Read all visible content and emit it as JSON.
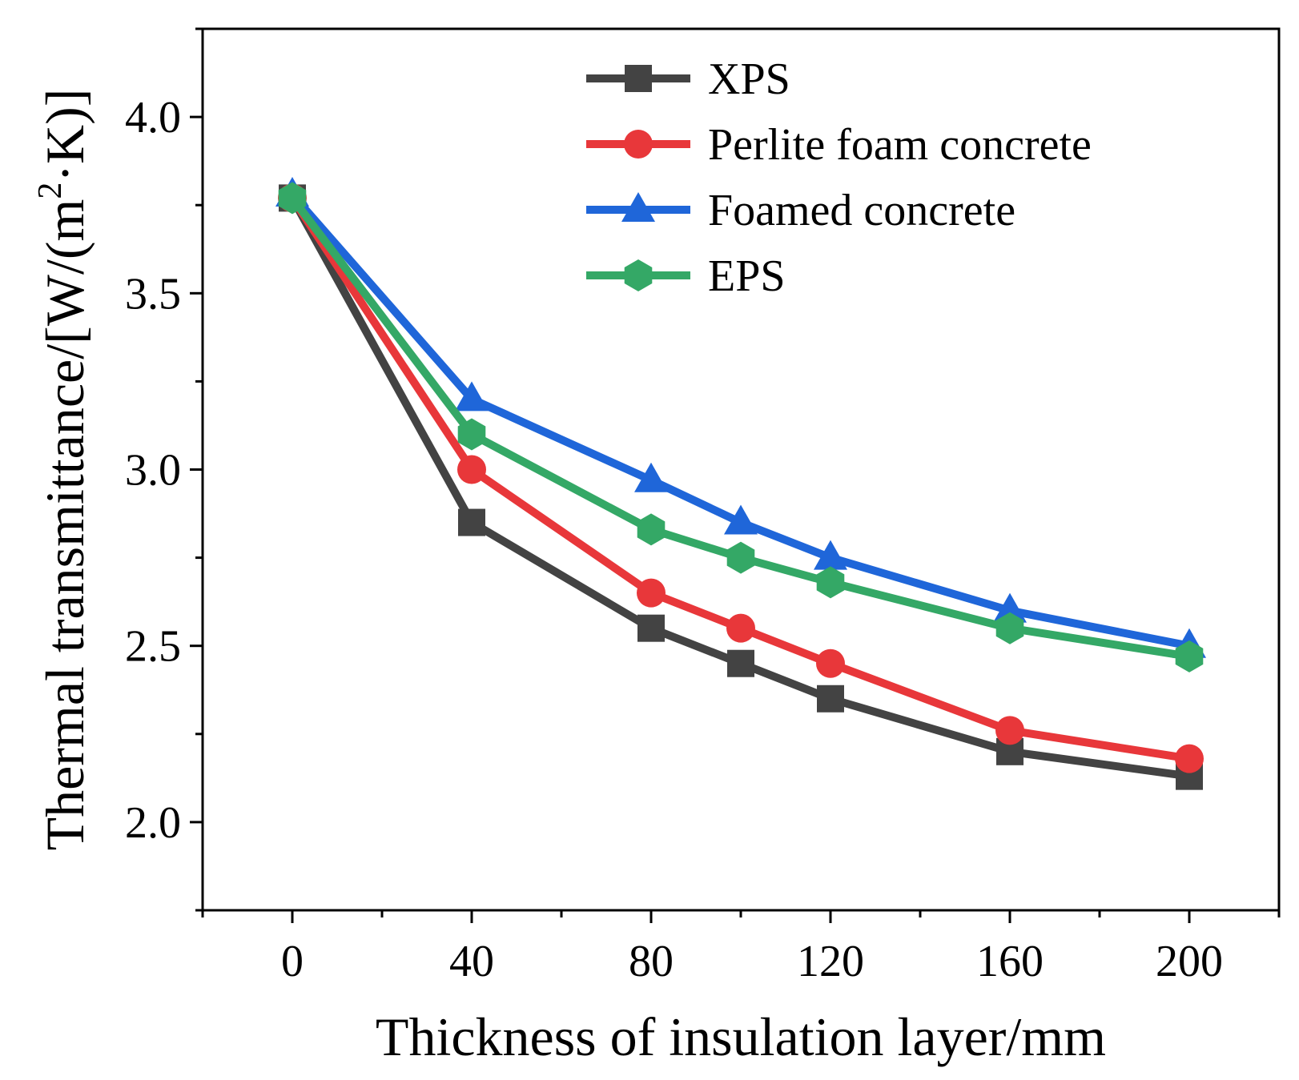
{
  "chart_data": {
    "type": "line",
    "title": "",
    "xlabel": "Thickness of insulation layer/mm",
    "ylabel": "Thermal transmittance/[W/(m²·K)]",
    "ylabel_parts": {
      "main": "Thermal transmittance/[W/(m",
      "sup": "2",
      "tail": "·K)]"
    },
    "x": [
      0,
      40,
      80,
      100,
      120,
      160,
      200
    ],
    "xlim": [
      -20,
      220
    ],
    "ylim": [
      1.75,
      4.25
    ],
    "x_ticks": [
      0,
      40,
      80,
      120,
      160,
      200
    ],
    "x_tick_labels": [
      "0",
      "40",
      "80",
      "120",
      "160",
      "200"
    ],
    "x_minor_ticks": [
      -20,
      20,
      60,
      100,
      140,
      180,
      220
    ],
    "y_ticks": [
      2.0,
      2.5,
      3.0,
      3.5,
      4.0
    ],
    "y_tick_labels": [
      "2.0",
      "2.5",
      "3.0",
      "3.5",
      "4.0"
    ],
    "y_minor_ticks": [
      1.75,
      2.25,
      2.75,
      3.25,
      3.75,
      4.25
    ],
    "grid": false,
    "legend_position": "top-right",
    "series": [
      {
        "name": "XPS",
        "marker": "square",
        "color": "#434343",
        "values": [
          3.77,
          2.85,
          2.55,
          2.45,
          2.35,
          2.2,
          2.13
        ]
      },
      {
        "name": "Perlite foam concrete",
        "marker": "circle",
        "color": "#e8373a",
        "values": [
          3.77,
          3.0,
          2.65,
          2.55,
          2.45,
          2.26,
          2.18
        ]
      },
      {
        "name": "Foamed concrete",
        "marker": "triangle",
        "color": "#1f66d9",
        "values": [
          3.78,
          3.2,
          2.97,
          2.85,
          2.75,
          2.6,
          2.5
        ]
      },
      {
        "name": "EPS",
        "marker": "hexagon",
        "color": "#34a866",
        "values": [
          3.77,
          3.1,
          2.83,
          2.75,
          2.68,
          2.55,
          2.47
        ]
      }
    ]
  }
}
